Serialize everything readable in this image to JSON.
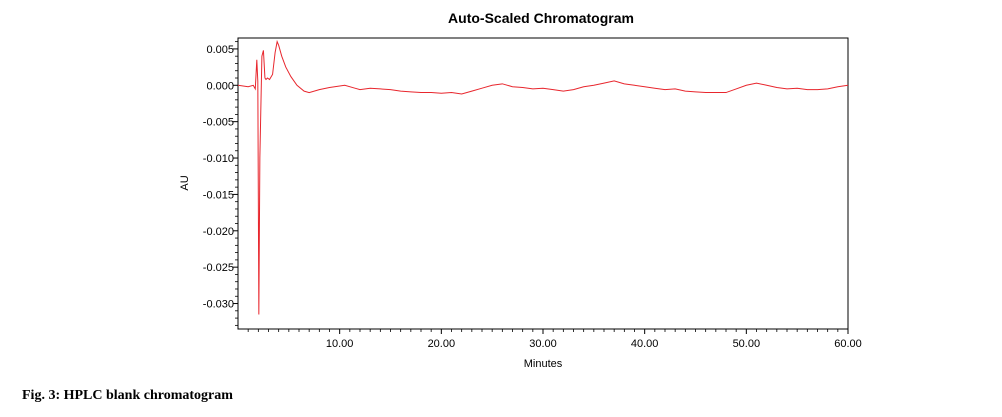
{
  "caption": "Fig. 3: HPLC blank chromatogram",
  "chart_data": {
    "type": "line",
    "title": "Auto-Scaled Chromatogram",
    "xlabel": "Minutes",
    "ylabel": "AU",
    "xlim": [
      0,
      60
    ],
    "ylim": [
      -0.0335,
      0.0065
    ],
    "x_ticks": [
      10,
      20,
      30,
      40,
      50,
      60
    ],
    "x_tick_labels": [
      "10.00",
      "20.00",
      "30.00",
      "40.00",
      "50.00",
      "60.00"
    ],
    "y_ticks": [
      0.005,
      0.0,
      -0.005,
      -0.01,
      -0.015,
      -0.02,
      -0.025,
      -0.03
    ],
    "y_tick_labels": [
      "0.005",
      "0.000",
      "-0.005",
      "-0.010",
      "-0.015",
      "-0.020",
      "-0.025",
      "-0.030"
    ],
    "grid": false,
    "series": [
      {
        "color": "#e8262d",
        "x": [
          0,
          1,
          1.5,
          1.7,
          1.85,
          1.95,
          2.05,
          2.15,
          2.35,
          2.5,
          2.65,
          2.75,
          2.9,
          3.1,
          3.4,
          3.65,
          3.85,
          4.0,
          4.3,
          4.7,
          5.2,
          5.8,
          6.5,
          7.0,
          8,
          9,
          10.5,
          11.5,
          12,
          13,
          14,
          15,
          16,
          17,
          18,
          19,
          20,
          21,
          22,
          23,
          24,
          25,
          26,
          27,
          28,
          29,
          30,
          31,
          32,
          33,
          34,
          35,
          36,
          37,
          38,
          39,
          40,
          41,
          42,
          43,
          44,
          45,
          46,
          47,
          48,
          49,
          50,
          51,
          52,
          53,
          54,
          55,
          56,
          57,
          58,
          59,
          60
        ],
        "y": [
          0.0,
          -0.0002,
          0.0,
          -0.0005,
          0.0035,
          0.0005,
          -0.0315,
          -0.01,
          0.004,
          0.0048,
          0.001,
          0.0008,
          0.001,
          0.0008,
          0.0015,
          0.0045,
          0.006,
          0.0055,
          0.004,
          0.0025,
          0.0012,
          0.0,
          -0.0008,
          -0.001,
          -0.0006,
          -0.0003,
          0.0,
          -0.0004,
          -0.0006,
          -0.0004,
          -0.0005,
          -0.0006,
          -0.0008,
          -0.0009,
          -0.001,
          -0.001,
          -0.0011,
          -0.001,
          -0.0012,
          -0.0008,
          -0.0004,
          0.0,
          0.0002,
          -0.0002,
          -0.0003,
          -0.0005,
          -0.0004,
          -0.0006,
          -0.0008,
          -0.0006,
          -0.0002,
          0.0,
          0.0003,
          0.0006,
          0.0002,
          0.0,
          -0.0002,
          -0.0004,
          -0.0006,
          -0.0005,
          -0.0008,
          -0.0009,
          -0.001,
          -0.001,
          -0.001,
          -0.0005,
          0.0,
          0.0003,
          0.0,
          -0.0003,
          -0.0005,
          -0.0004,
          -0.0006,
          -0.0006,
          -0.0005,
          -0.0002,
          0.0
        ]
      }
    ]
  }
}
